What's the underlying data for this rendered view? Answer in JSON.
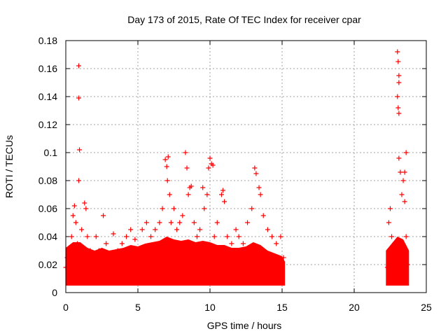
{
  "chart_data": {
    "type": "scatter",
    "title": "Day 173 of 2015, Rate Of TEC Index for receiver cpar",
    "xlabel": "GPS time / hours",
    "ylabel": "ROTI / TECUs",
    "xlim": [
      0,
      25
    ],
    "ylim": [
      0,
      0.18
    ],
    "xticks": [
      0,
      5,
      10,
      15,
      20,
      25
    ],
    "yticks": [
      0,
      0.02,
      0.04,
      0.06,
      0.08,
      0.1,
      0.12,
      0.14,
      0.16,
      0.18
    ],
    "xtick_labels": [
      "0",
      "5",
      "10",
      "15",
      "20",
      "25"
    ],
    "ytick_labels": [
      "0",
      "0.02",
      "0.04",
      "0.06",
      "0.08",
      "0.1",
      "0.12",
      "0.14",
      "0.16",
      "0.18"
    ],
    "grid": true,
    "marker": "+",
    "color": "#ff0000",
    "series": [
      {
        "name": "ROTI",
        "points": [
          [
            0.0,
            0.018
          ],
          [
            0.1,
            0.025
          ],
          [
            0.2,
            0.012
          ],
          [
            0.3,
            0.03
          ],
          [
            0.4,
            0.04
          ],
          [
            0.5,
            0.055
          ],
          [
            0.6,
            0.062
          ],
          [
            0.7,
            0.05
          ],
          [
            0.8,
            0.035
          ],
          [
            0.9,
            0.162
          ],
          [
            0.9,
            0.139
          ],
          [
            0.95,
            0.102
          ],
          [
            0.9,
            0.08
          ],
          [
            1.0,
            0.02
          ],
          [
            1.1,
            0.045
          ],
          [
            1.2,
            0.03
          ],
          [
            1.3,
            0.064
          ],
          [
            1.4,
            0.06
          ],
          [
            1.5,
            0.04
          ],
          [
            1.7,
            0.03
          ],
          [
            1.9,
            0.025
          ],
          [
            2.1,
            0.04
          ],
          [
            2.3,
            0.03
          ],
          [
            2.6,
            0.055
          ],
          [
            2.8,
            0.035
          ],
          [
            3.0,
            0.025
          ],
          [
            3.3,
            0.042
          ],
          [
            3.6,
            0.03
          ],
          [
            3.9,
            0.035
          ],
          [
            4.2,
            0.04
          ],
          [
            4.5,
            0.045
          ],
          [
            4.8,
            0.038
          ],
          [
            5.0,
            0.03
          ],
          [
            5.3,
            0.045
          ],
          [
            5.6,
            0.05
          ],
          [
            5.9,
            0.04
          ],
          [
            6.2,
            0.045
          ],
          [
            6.5,
            0.05
          ],
          [
            6.7,
            0.06
          ],
          [
            6.9,
            0.095
          ],
          [
            7.0,
            0.09
          ],
          [
            7.05,
            0.08
          ],
          [
            7.1,
            0.097
          ],
          [
            7.2,
            0.07
          ],
          [
            7.3,
            0.05
          ],
          [
            7.5,
            0.06
          ],
          [
            7.7,
            0.045
          ],
          [
            7.9,
            0.05
          ],
          [
            8.1,
            0.055
          ],
          [
            8.3,
            0.1
          ],
          [
            8.4,
            0.089
          ],
          [
            8.5,
            0.07
          ],
          [
            8.6,
            0.075
          ],
          [
            8.7,
            0.076
          ],
          [
            8.9,
            0.05
          ],
          [
            9.1,
            0.04
          ],
          [
            9.3,
            0.045
          ],
          [
            9.5,
            0.075
          ],
          [
            9.6,
            0.06
          ],
          [
            9.8,
            0.07
          ],
          [
            9.9,
            0.089
          ],
          [
            10.0,
            0.096
          ],
          [
            10.1,
            0.092
          ],
          [
            10.2,
            0.091
          ],
          [
            10.3,
            0.04
          ],
          [
            10.5,
            0.05
          ],
          [
            10.8,
            0.07
          ],
          [
            10.9,
            0.073
          ],
          [
            11.0,
            0.065
          ],
          [
            11.2,
            0.04
          ],
          [
            11.5,
            0.035
          ],
          [
            11.8,
            0.045
          ],
          [
            12.0,
            0.04
          ],
          [
            12.3,
            0.035
          ],
          [
            12.6,
            0.05
          ],
          [
            12.9,
            0.06
          ],
          [
            13.1,
            0.089
          ],
          [
            13.2,
            0.085
          ],
          [
            13.4,
            0.075
          ],
          [
            13.5,
            0.07
          ],
          [
            13.7,
            0.055
          ],
          [
            14.0,
            0.045
          ],
          [
            14.3,
            0.04
          ],
          [
            14.6,
            0.035
          ],
          [
            14.9,
            0.04
          ],
          [
            15.1,
            0.025
          ],
          [
            22.3,
            0.018
          ],
          [
            22.4,
            0.05
          ],
          [
            22.5,
            0.06
          ],
          [
            22.6,
            0.04
          ],
          [
            22.8,
            0.035
          ],
          [
            23.0,
            0.172
          ],
          [
            23.05,
            0.165
          ],
          [
            23.1,
            0.155
          ],
          [
            23.1,
            0.15
          ],
          [
            23.0,
            0.14
          ],
          [
            23.05,
            0.132
          ],
          [
            23.1,
            0.128
          ],
          [
            23.1,
            0.096
          ],
          [
            23.2,
            0.086
          ],
          [
            23.3,
            0.07
          ],
          [
            23.4,
            0.08
          ],
          [
            23.5,
            0.086
          ],
          [
            23.6,
            0.1
          ],
          [
            23.5,
            0.065
          ],
          [
            23.6,
            0.04
          ],
          [
            23.7,
            0.02
          ]
        ],
        "band_upper": [
          [
            0.0,
            0.032
          ],
          [
            0.5,
            0.036
          ],
          [
            1.0,
            0.036
          ],
          [
            1.5,
            0.032
          ],
          [
            2.0,
            0.03
          ],
          [
            2.5,
            0.032
          ],
          [
            3.0,
            0.03
          ],
          [
            3.5,
            0.031
          ],
          [
            4.0,
            0.032
          ],
          [
            4.5,
            0.034
          ],
          [
            5.0,
            0.033
          ],
          [
            5.5,
            0.035
          ],
          [
            6.0,
            0.036
          ],
          [
            6.5,
            0.037
          ],
          [
            7.0,
            0.04
          ],
          [
            7.5,
            0.038
          ],
          [
            8.0,
            0.037
          ],
          [
            8.5,
            0.038
          ],
          [
            9.0,
            0.036
          ],
          [
            9.5,
            0.037
          ],
          [
            10.0,
            0.036
          ],
          [
            10.5,
            0.034
          ],
          [
            11.0,
            0.034
          ],
          [
            11.5,
            0.032
          ],
          [
            12.0,
            0.032
          ],
          [
            12.5,
            0.033
          ],
          [
            13.0,
            0.036
          ],
          [
            13.5,
            0.034
          ],
          [
            14.0,
            0.03
          ],
          [
            14.5,
            0.028
          ],
          [
            15.0,
            0.026
          ],
          [
            15.2,
            0.022
          ]
        ],
        "band_upper_2": [
          [
            22.2,
            0.03
          ],
          [
            22.6,
            0.035
          ],
          [
            23.0,
            0.04
          ],
          [
            23.4,
            0.038
          ],
          [
            23.8,
            0.03
          ]
        ],
        "band_lower": 0.005
      }
    ]
  }
}
